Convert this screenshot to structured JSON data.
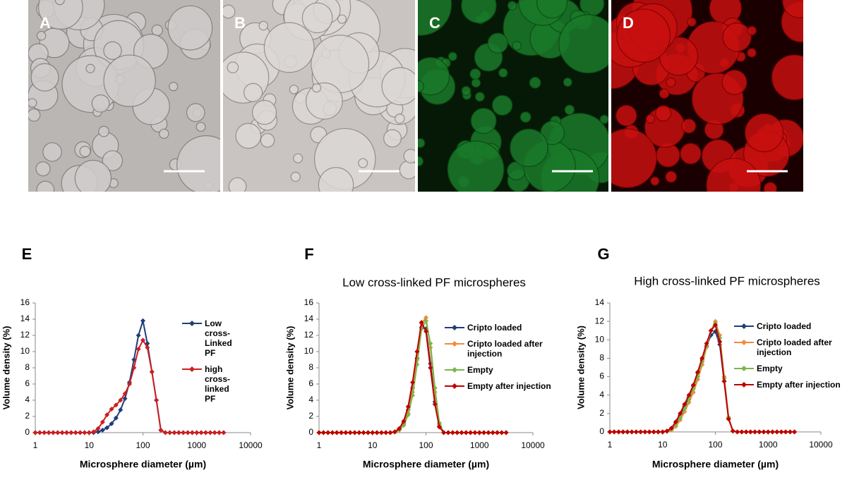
{
  "micrographs": {
    "labels": [
      "A",
      "B",
      "C",
      "D"
    ]
  },
  "chart_data": [
    {
      "type": "line",
      "panel_label": "E",
      "xlabel": "Microsphere diameter (µm)",
      "ylabel": "Volume density (%)",
      "log_x": true,
      "xlim": [
        1,
        10000
      ],
      "xticks": [
        1,
        10,
        100,
        1000,
        10000
      ],
      "ylim": [
        0,
        16
      ],
      "yticks": [
        0,
        2,
        4,
        6,
        8,
        10,
        12,
        14,
        16
      ],
      "x": [
        1,
        1.21,
        1.47,
        1.78,
        2.15,
        2.61,
        3.16,
        3.83,
        4.64,
        5.62,
        6.81,
        8.25,
        10,
        12.1,
        14.7,
        17.8,
        21.5,
        26.1,
        31.6,
        38.3,
        46.4,
        56.2,
        68.1,
        82.5,
        100,
        121,
        147,
        178,
        215,
        261,
        316,
        383,
        464,
        562,
        681,
        825,
        1000,
        1210,
        1470,
        1780,
        2150,
        2610,
        3160
      ],
      "series": [
        {
          "name": "Low cross-Linked PF",
          "color": "#1f3d7a",
          "values": [
            0,
            0,
            0,
            0,
            0,
            0,
            0,
            0,
            0,
            0,
            0,
            0,
            0,
            0,
            0.1,
            0.3,
            0.6,
            1.1,
            1.8,
            2.8,
            4.2,
            6.2,
            9.0,
            12.0,
            13.8,
            11.0,
            7.5,
            4.0,
            0.3,
            0,
            0,
            0,
            0,
            0,
            0,
            0,
            0,
            0,
            0,
            0,
            0,
            0,
            0
          ]
        },
        {
          "name": "high cross-linked PF",
          "color": "#cc1f1f",
          "values": [
            0,
            0,
            0,
            0,
            0,
            0,
            0,
            0,
            0,
            0,
            0,
            0,
            0,
            0.1,
            0.5,
            1.3,
            2.2,
            2.9,
            3.4,
            4.0,
            4.8,
            6.0,
            8.0,
            10.3,
            11.4,
            10.5,
            7.5,
            4.0,
            0.3,
            0,
            0,
            0,
            0,
            0,
            0,
            0,
            0,
            0,
            0,
            0,
            0,
            0,
            0
          ]
        }
      ]
    },
    {
      "type": "line",
      "panel_label": "F",
      "title": "Low cross-linked PF microspheres",
      "xlabel": "Microsphere diameter (µm)",
      "ylabel": "Volume density (%)",
      "log_x": true,
      "xlim": [
        1,
        10000
      ],
      "xticks": [
        1,
        10,
        100,
        1000,
        10000
      ],
      "ylim": [
        0,
        16
      ],
      "yticks": [
        0,
        2,
        4,
        6,
        8,
        10,
        12,
        14,
        16
      ],
      "x": [
        1,
        1.21,
        1.47,
        1.78,
        2.15,
        2.61,
        3.16,
        3.83,
        4.64,
        5.62,
        6.81,
        8.25,
        10,
        12.1,
        14.7,
        17.8,
        21.5,
        26.1,
        31.6,
        38.3,
        46.4,
        56.2,
        68.1,
        82.5,
        100,
        121,
        147,
        178,
        215,
        261,
        316,
        383,
        464,
        562,
        681,
        825,
        1000,
        1210,
        1470,
        1780,
        2150,
        2610,
        3160
      ],
      "series": [
        {
          "name": "Cripto loaded",
          "color": "#1f3d7a",
          "values": [
            0,
            0,
            0,
            0,
            0,
            0,
            0,
            0,
            0,
            0,
            0,
            0,
            0,
            0,
            0,
            0,
            0,
            0.1,
            0.4,
            1.2,
            2.8,
            5.5,
            9.2,
            13.0,
            12.8,
            8.5,
            3.8,
            0.8,
            0,
            0,
            0,
            0,
            0,
            0,
            0,
            0,
            0,
            0,
            0,
            0,
            0,
            0,
            0
          ]
        },
        {
          "name": "Cripto loaded after injection",
          "color": "#f28a3c",
          "values": [
            0,
            0,
            0,
            0,
            0,
            0,
            0,
            0,
            0,
            0,
            0,
            0,
            0,
            0,
            0,
            0,
            0,
            0.05,
            0.3,
            1.0,
            2.4,
            5.0,
            9.0,
            13.5,
            14.2,
            10.5,
            5.0,
            1.0,
            0,
            0,
            0,
            0,
            0,
            0,
            0,
            0,
            0,
            0,
            0,
            0,
            0,
            0,
            0
          ]
        },
        {
          "name": "Empty",
          "color": "#7ab648",
          "values": [
            0,
            0,
            0,
            0,
            0,
            0,
            0,
            0,
            0,
            0,
            0,
            0,
            0,
            0,
            0,
            0,
            0,
            0.05,
            0.3,
            0.9,
            2.2,
            4.6,
            8.4,
            12.8,
            13.8,
            11.0,
            5.5,
            1.2,
            0,
            0,
            0,
            0,
            0,
            0,
            0,
            0,
            0,
            0,
            0,
            0,
            0,
            0,
            0
          ]
        },
        {
          "name": "Empty after injection",
          "color": "#c00000",
          "values": [
            0,
            0,
            0,
            0,
            0,
            0,
            0,
            0,
            0,
            0,
            0,
            0,
            0,
            0,
            0,
            0,
            0,
            0.1,
            0.5,
            1.4,
            3.2,
            6.2,
            10.0,
            13.6,
            12.5,
            8.0,
            3.5,
            0.7,
            0,
            0,
            0,
            0,
            0,
            0,
            0,
            0,
            0,
            0,
            0,
            0,
            0,
            0,
            0
          ]
        }
      ]
    },
    {
      "type": "line",
      "panel_label": "G",
      "title": "High cross-linked PF microspheres",
      "xlabel": "Microsphere diameter (µm)",
      "ylabel": "Volume density (%)",
      "log_x": true,
      "xlim": [
        1,
        10000
      ],
      "xticks": [
        1,
        10,
        100,
        1000,
        10000
      ],
      "ylim": [
        0,
        14
      ],
      "yticks": [
        0,
        2,
        4,
        6,
        8,
        10,
        12,
        14
      ],
      "x": [
        1,
        1.21,
        1.47,
        1.78,
        2.15,
        2.61,
        3.16,
        3.83,
        4.64,
        5.62,
        6.81,
        8.25,
        10,
        12.1,
        14.7,
        17.8,
        21.5,
        26.1,
        31.6,
        38.3,
        46.4,
        56.2,
        68.1,
        82.5,
        100,
        121,
        147,
        178,
        215,
        261,
        316,
        383,
        464,
        562,
        681,
        825,
        1000,
        1210,
        1470,
        1780,
        2150,
        2610,
        3160
      ],
      "series": [
        {
          "name": "Cripto loaded",
          "color": "#1f3d7a",
          "values": [
            0,
            0,
            0,
            0,
            0,
            0,
            0,
            0,
            0,
            0,
            0,
            0,
            0,
            0.1,
            0.4,
            1.0,
            1.8,
            2.8,
            3.8,
            5.0,
            6.4,
            7.8,
            9.3,
            10.5,
            10.9,
            9.5,
            5.5,
            1.5,
            0.1,
            0,
            0,
            0,
            0,
            0,
            0,
            0,
            0,
            0,
            0,
            0,
            0,
            0,
            0
          ]
        },
        {
          "name": "Cripto loaded after injection",
          "color": "#f28a3c",
          "values": [
            0,
            0,
            0,
            0,
            0,
            0,
            0,
            0,
            0,
            0,
            0,
            0,
            0,
            0.05,
            0.2,
            0.6,
            1.3,
            2.2,
            3.2,
            4.3,
            5.7,
            7.3,
            9.2,
            11.0,
            12.0,
            10.5,
            6.0,
            1.6,
            0.1,
            0,
            0,
            0,
            0,
            0,
            0,
            0,
            0,
            0,
            0,
            0,
            0,
            0,
            0
          ]
        },
        {
          "name": "Empty",
          "color": "#7ab648",
          "values": [
            0,
            0,
            0,
            0,
            0,
            0,
            0,
            0,
            0,
            0,
            0,
            0,
            0,
            0.05,
            0.3,
            0.8,
            1.5,
            2.5,
            3.5,
            4.7,
            6.0,
            7.6,
            9.4,
            11.0,
            11.8,
            10.2,
            5.8,
            1.5,
            0.1,
            0,
            0,
            0,
            0,
            0,
            0,
            0,
            0,
            0,
            0,
            0,
            0,
            0,
            0
          ]
        },
        {
          "name": "Empty after injection",
          "color": "#c00000",
          "values": [
            0,
            0,
            0,
            0,
            0,
            0,
            0,
            0,
            0,
            0,
            0,
            0,
            0,
            0.1,
            0.4,
            1.1,
            2.0,
            3.0,
            4.0,
            5.1,
            6.5,
            8.0,
            9.6,
            11.0,
            11.6,
            9.8,
            5.5,
            1.4,
            0.1,
            0,
            0,
            0,
            0,
            0,
            0,
            0,
            0,
            0,
            0,
            0,
            0,
            0,
            0
          ]
        }
      ]
    }
  ]
}
